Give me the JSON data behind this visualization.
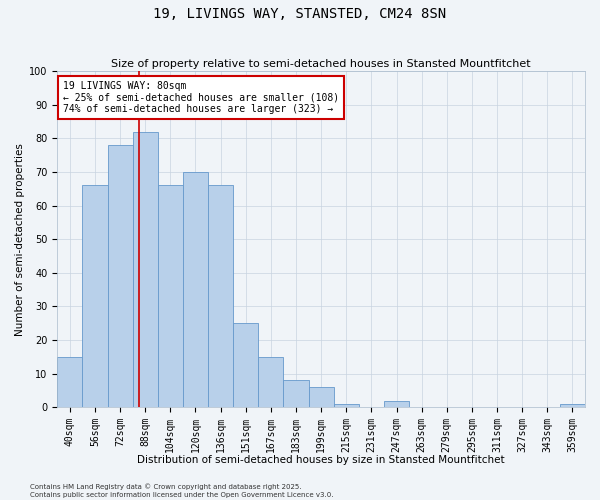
{
  "title": "19, LIVINGS WAY, STANSTED, CM24 8SN",
  "subtitle": "Size of property relative to semi-detached houses in Stansted Mountfitchet",
  "xlabel": "Distribution of semi-detached houses by size in Stansted Mountfitchet",
  "ylabel": "Number of semi-detached properties",
  "categories": [
    "40sqm",
    "56sqm",
    "72sqm",
    "88sqm",
    "104sqm",
    "120sqm",
    "136sqm",
    "151sqm",
    "167sqm",
    "183sqm",
    "199sqm",
    "215sqm",
    "231sqm",
    "247sqm",
    "263sqm",
    "279sqm",
    "295sqm",
    "311sqm",
    "327sqm",
    "343sqm",
    "359sqm"
  ],
  "values": [
    15,
    66,
    78,
    82,
    66,
    70,
    66,
    25,
    15,
    8,
    6,
    1,
    0,
    2,
    0,
    0,
    0,
    0,
    0,
    0,
    1
  ],
  "bar_color": "#b8d0ea",
  "bar_edge_color": "#6699cc",
  "vline_x": 2.75,
  "vline_color": "#cc0000",
  "annotation_text": "19 LIVINGS WAY: 80sqm\n← 25% of semi-detached houses are smaller (108)\n74% of semi-detached houses are larger (323) →",
  "annotation_box_color": "#ffffff",
  "annotation_box_edge": "#cc0000",
  "ylim": [
    0,
    100
  ],
  "footer": "Contains HM Land Registry data © Crown copyright and database right 2025.\nContains public sector information licensed under the Open Government Licence v3.0.",
  "background_color": "#f0f4f8",
  "grid_color": "#c8d4e0",
  "title_fontsize": 10,
  "subtitle_fontsize": 8,
  "xlabel_fontsize": 7.5,
  "ylabel_fontsize": 7.5,
  "tick_fontsize": 7,
  "annotation_fontsize": 7,
  "footer_fontsize": 5
}
